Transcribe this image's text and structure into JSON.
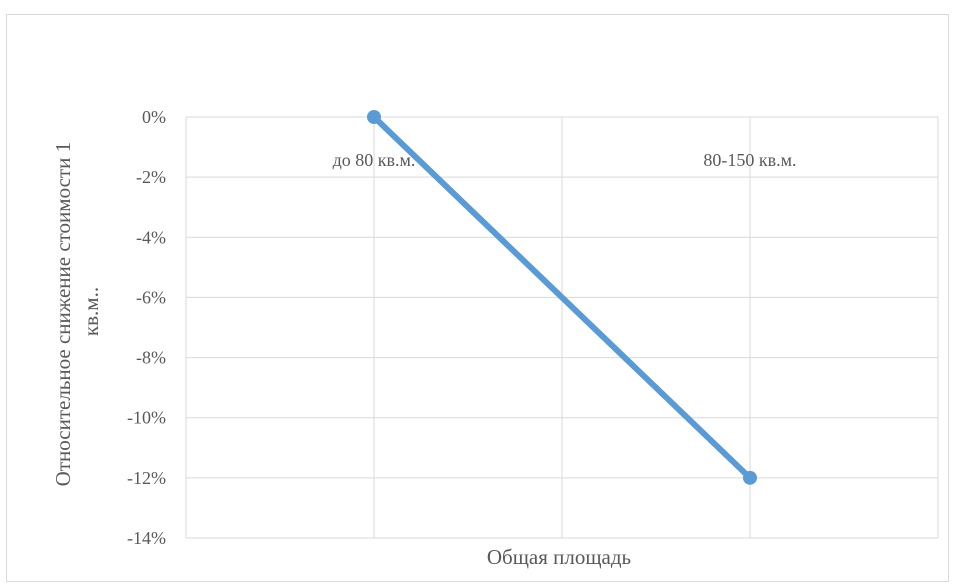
{
  "chart_data": {
    "type": "line",
    "categories": [
      "до 80 кв.м.",
      "80-150 кв.м."
    ],
    "series": [
      {
        "values": [
          0,
          -12
        ]
      }
    ],
    "xlabel": "Общая площадь",
    "ylabel_line1": "Относительное снижение стоимости 1",
    "ylabel_line2": "кв.м..",
    "yticks": [
      "0%",
      "-2%",
      "-4%",
      "-6%",
      "-8%",
      "-10%",
      "-12%",
      "-14%"
    ],
    "ylim": [
      -14,
      0
    ],
    "ystep": 2,
    "grid": true,
    "legend": "none",
    "series_color": "#5b9bd5",
    "grid_color": "#d9d9d9"
  }
}
